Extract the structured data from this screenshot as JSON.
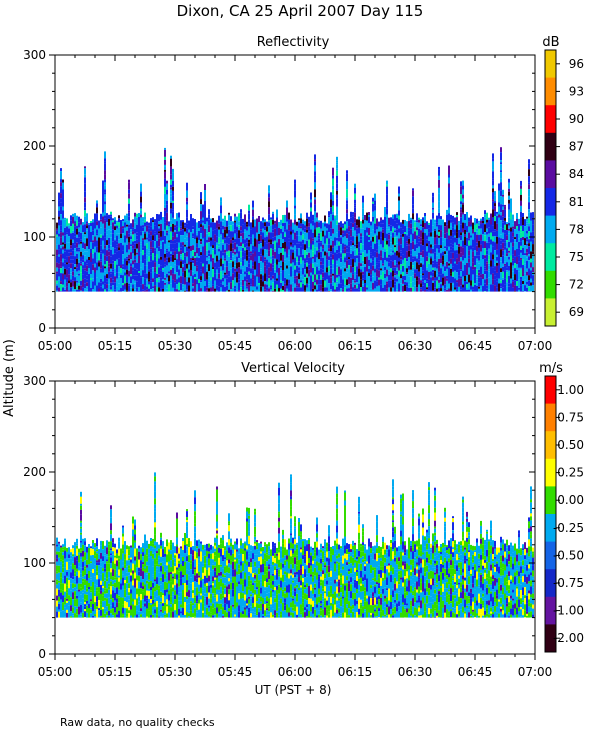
{
  "figure": {
    "title": "Dixon, CA 25 April 2007  Day 115",
    "ylabel": "Altitude (m)",
    "xlabel": "UT  (PST + 8)",
    "footnote": "Raw data, no quality checks"
  },
  "chart_data": [
    {
      "type": "heatmap",
      "title": "Reflectivity",
      "xlabel": "UT  (PST + 8)",
      "ylabel": "Altitude (m)",
      "x_range": [
        "05:00",
        "07:00"
      ],
      "x_ticks": [
        "05:00",
        "05:15",
        "05:30",
        "05:45",
        "06:00",
        "06:15",
        "06:30",
        "06:45",
        "07:00"
      ],
      "y_range": [
        0,
        300
      ],
      "y_ticks": [
        "0",
        "100",
        "200",
        "300"
      ],
      "colorbar": {
        "unit": "dB",
        "labels": [
          "96",
          "93",
          "90",
          "87",
          "84",
          "81",
          "78",
          "75",
          "72",
          "69"
        ],
        "colors": [
          "#f0c800",
          "#ff8c00",
          "#ff0000",
          "#300014",
          "#5a0ca0",
          "#1428e6",
          "#00aaf0",
          "#00eaa0",
          "#32dc00",
          "#c8f032"
        ]
      },
      "dominant_colors": [
        "#1428e6",
        "#00aaf0",
        "#5a0ca0",
        "#300014",
        "#00eaa0"
      ],
      "data_band_altitude_m": [
        40,
        120
      ],
      "max_echo_altitude_m": 200,
      "note": "Echoes mostly 40-140 m, dominated by 78-84 dB"
    },
    {
      "type": "heatmap",
      "title": "Vertical Velocity",
      "xlabel": "UT  (PST + 8)",
      "ylabel": "Altitude (m)",
      "x_range": [
        "05:00",
        "07:00"
      ],
      "x_ticks": [
        "05:00",
        "05:15",
        "05:30",
        "05:45",
        "06:00",
        "06:15",
        "06:30",
        "06:45",
        "07:00"
      ],
      "y_range": [
        0,
        300
      ],
      "y_ticks": [
        "0",
        "100",
        "200",
        "300"
      ],
      "colorbar": {
        "unit": "m/s",
        "labels": [
          "1.00",
          "0.75",
          "0.50",
          "0.25",
          "0.00",
          "-0.25",
          "-0.50",
          "-0.75",
          "-1.00",
          "-2.00"
        ],
        "colors": [
          "#ff0000",
          "#ff8000",
          "#ffbe00",
          "#ffff00",
          "#32dc00",
          "#00aaf0",
          "#1464e6",
          "#1428c8",
          "#6414a0",
          "#300014"
        ]
      },
      "dominant_colors": [
        "#00aaf0",
        "#32dc00",
        "#1428e6",
        "#ffff00",
        "#5a0ca0"
      ],
      "data_band_altitude_m": [
        40,
        120
      ],
      "max_echo_altitude_m": 200,
      "note": "Velocities mostly between -0.50 and 0.50 m/s"
    }
  ]
}
